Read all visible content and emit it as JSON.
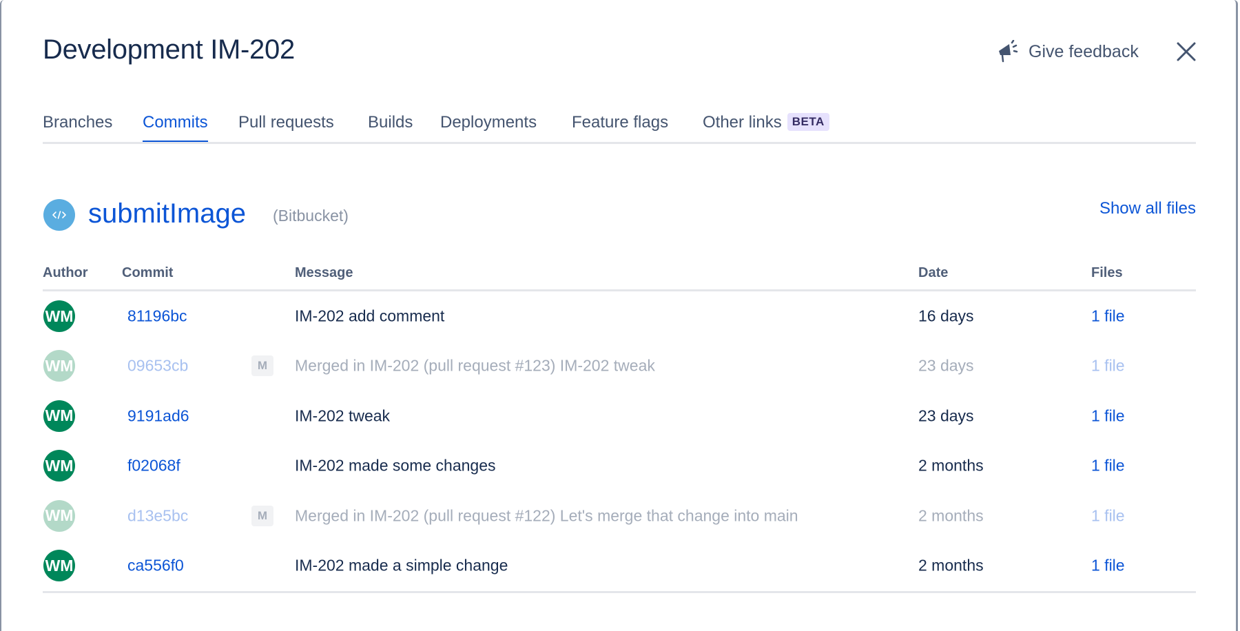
{
  "header": {
    "title": "Development IM-202",
    "feedback_label": "Give feedback",
    "feedback_icon": "megaphone-icon",
    "close_icon": "close-icon"
  },
  "tabs": [
    {
      "label": "Branches",
      "active": false
    },
    {
      "label": "Commits",
      "active": true
    },
    {
      "label": "Pull requests",
      "active": false
    },
    {
      "label": "Builds",
      "active": false
    },
    {
      "label": "Deployments",
      "active": false
    },
    {
      "label": "Feature flags",
      "active": false
    },
    {
      "label": "Other links",
      "active": false,
      "badge": "BETA"
    }
  ],
  "repo": {
    "name": "submitImage",
    "source": "(Bitbucket)",
    "icon": "code-icon",
    "show_all_label": "Show all files"
  },
  "table": {
    "headers": {
      "author": "Author",
      "commit": "Commit",
      "message": "Message",
      "date": "Date",
      "files": "Files"
    },
    "rows": [
      {
        "author": "WM",
        "commit": "81196bc",
        "merge": false,
        "message": "IM-202 add comment",
        "date": "16 days",
        "files": "1 file"
      },
      {
        "author": "WM",
        "commit": "09653cb",
        "merge": true,
        "merge_badge": "M",
        "message": "Merged in IM-202 (pull request #123) IM-202 tweak",
        "date": "23 days",
        "files": "1 file"
      },
      {
        "author": "WM",
        "commit": "9191ad6",
        "merge": false,
        "message": "IM-202 tweak",
        "date": "23 days",
        "files": "1 file"
      },
      {
        "author": "WM",
        "commit": "f02068f",
        "merge": false,
        "message": "IM-202 made some changes",
        "date": "2 months",
        "files": "1 file"
      },
      {
        "author": "WM",
        "commit": "d13e5bc",
        "merge": true,
        "merge_badge": "M",
        "message": "Merged in IM-202 (pull request #122) Let's merge that change into main",
        "date": "2 months",
        "files": "1 file"
      },
      {
        "author": "WM",
        "commit": "ca556f0",
        "merge": false,
        "message": "IM-202 made a simple change",
        "date": "2 months",
        "files": "1 file"
      }
    ]
  },
  "colors": {
    "accent": "#0C55D6",
    "avatar": "#00875A",
    "text": "#172B4D",
    "beta_bg": "#E6E1FD"
  }
}
